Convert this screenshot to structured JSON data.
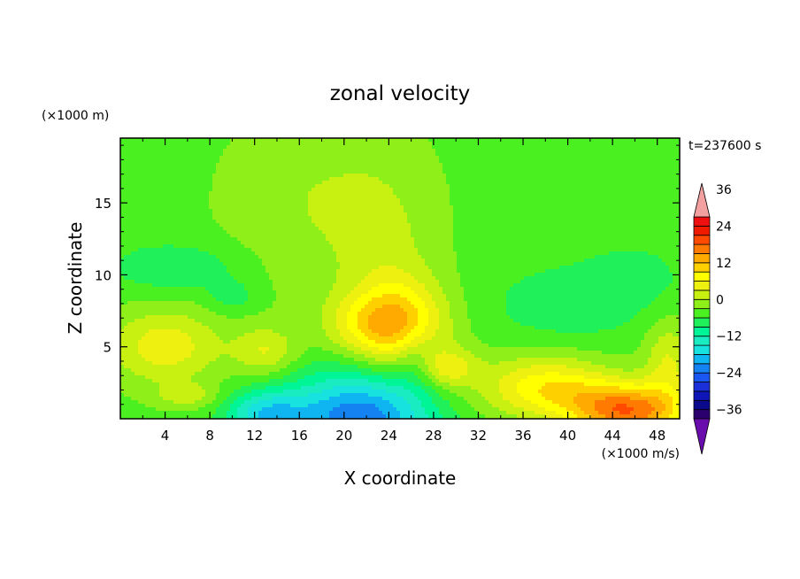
{
  "chart_data": {
    "type": "heatmap",
    "title": "zonal velocity",
    "xlabel": "X coordinate",
    "ylabel": "Z coordinate",
    "x_units": "(×1000 m/s)",
    "y_units": "(×1000 m)",
    "time_label": "t=237600 s",
    "xlim": [
      0,
      50
    ],
    "ylim": [
      0,
      19.5
    ],
    "x_ticks": [
      "4",
      "8",
      "12",
      "16",
      "20",
      "24",
      "28",
      "32",
      "36",
      "40",
      "44",
      "48"
    ],
    "y_ticks": [
      "5",
      "10",
      "15"
    ],
    "colorbar": {
      "levels_min": -42,
      "levels_step": 3,
      "tick_labels": [
        "36",
        "24",
        "12",
        "0",
        "−12",
        "−24",
        "−36"
      ],
      "tick_values": [
        36,
        24,
        12,
        0,
        -12,
        -24,
        -36
      ],
      "colors": [
        "#6a0dad",
        "#2b006e",
        "#0b0a8c",
        "#0f16b8",
        "#1c30d9",
        "#1a57f0",
        "#1482f0",
        "#0fb5f0",
        "#17e2e0",
        "#18ecc0",
        "#00f596",
        "#20f05a",
        "#4bf020",
        "#8ef018",
        "#c8f010",
        "#eef010",
        "#ffff00",
        "#ffd000",
        "#ffaa00",
        "#ff7a00",
        "#ff4a00",
        "#f01a00",
        "#ee1010",
        "#f2a0a0"
      ]
    },
    "field": {
      "base_value": -4,
      "features": [
        {
          "x": 18,
          "z": 15,
          "sx": 6,
          "sz": 4.5,
          "amp": 4
        },
        {
          "x": 24,
          "z": 10,
          "sx": 3,
          "sz": 5,
          "amp": 3.5
        },
        {
          "x": 5,
          "z": 10.5,
          "sx": 4,
          "sz": 1.2,
          "amp": -5
        },
        {
          "x": 10,
          "z": 8.5,
          "sx": 1.5,
          "sz": 0.8,
          "amp": -4
        },
        {
          "x": 40,
          "z": 8,
          "sx": 5,
          "sz": 2,
          "amp": -4
        },
        {
          "x": 46,
          "z": 10,
          "sx": 3,
          "sz": 1.5,
          "amp": -3
        },
        {
          "x": 25,
          "z": 6.5,
          "sx": 3,
          "sz": 2.2,
          "amp": 12
        },
        {
          "x": 22,
          "z": 6.5,
          "sx": 3,
          "sz": 1.5,
          "amp": 6
        },
        {
          "x": 4,
          "z": 5,
          "sx": 3.5,
          "sz": 1.8,
          "amp": 9
        },
        {
          "x": 13,
          "z": 4.7,
          "sx": 2,
          "sz": 1.2,
          "amp": 7
        },
        {
          "x": 6,
          "z": 1.6,
          "sx": 2,
          "sz": 0.6,
          "amp": 5
        },
        {
          "x": 38,
          "z": 2.5,
          "sx": 4,
          "sz": 1.5,
          "amp": 9
        },
        {
          "x": 45.5,
          "z": 0.4,
          "sx": 3.5,
          "sz": 1.2,
          "amp": 18
        },
        {
          "x": 42,
          "z": 1.5,
          "sx": 6,
          "sz": 1.2,
          "amp": 6
        },
        {
          "x": 29,
          "z": 3.5,
          "sx": 2,
          "sz": 1,
          "amp": 9
        },
        {
          "x": 21.5,
          "z": 0,
          "sx": 4.5,
          "sz": 2.4,
          "amp": -20
        },
        {
          "x": 13,
          "z": 0.3,
          "sx": 2.5,
          "sz": 1.2,
          "amp": -12
        },
        {
          "x": 26.5,
          "z": 4,
          "sx": 1.5,
          "sz": 1.5,
          "amp": -6
        },
        {
          "x": 49,
          "z": 4,
          "sx": 1.5,
          "sz": 2,
          "amp": 7
        }
      ]
    }
  }
}
